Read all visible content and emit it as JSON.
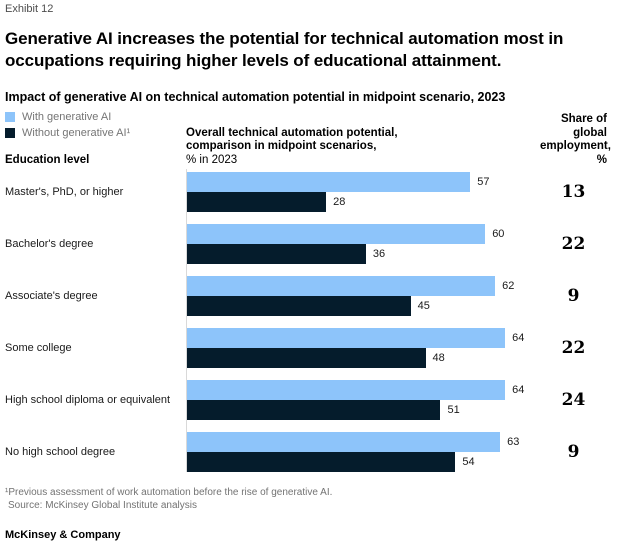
{
  "exhibit_label": "Exhibit 12",
  "title_lines": [
    "Generative AI increases the potential for technical automation most in",
    "occupations requiring higher levels of educational attainment."
  ],
  "subtitle": "Impact of generative AI on technical automation potential in midpoint scenario, 2023",
  "legend": {
    "items": [
      {
        "label": "With generative AI"
      },
      {
        "label": "Without generative AI¹"
      }
    ]
  },
  "columns": {
    "education_level": "Education level",
    "bars_header_lines": [
      "Overall technical automation potential,",
      "comparison in midpoint scenarios,",
      "% in 2023"
    ],
    "share_header_lines": [
      "Share of global",
      "employment, %"
    ]
  },
  "colors": {
    "with_generative_ai": "#8dc4fa",
    "without_generative_ai": "#051c2c",
    "axis_line": "#d9d9d9"
  },
  "chart_data": {
    "type": "bar",
    "orientation": "horizontal",
    "title": "Impact of generative AI on technical automation potential in midpoint scenario, 2023",
    "xlabel": "Overall technical automation potential, comparison in midpoint scenarios, % in 2023",
    "xlim": [
      0,
      64
    ],
    "grid": false,
    "legend_position": "top-left",
    "categories": [
      "Master's, PhD, or higher",
      "Bachelor's degree",
      "Associate's degree",
      "Some college",
      "High school diploma or equivalent",
      "No high school degree"
    ],
    "series": [
      {
        "name": "With generative AI",
        "values": [
          57,
          60,
          62,
          64,
          64,
          63
        ]
      },
      {
        "name": "Without generative AI",
        "values": [
          28,
          36,
          45,
          48,
          51,
          54
        ]
      }
    ],
    "share_of_global_employment": {
      "label": "Share of global employment, %",
      "values": [
        13,
        22,
        9,
        22,
        24,
        9
      ]
    }
  },
  "footnotes": {
    "line1": "¹Previous assessment of work automation before the rise of generative AI.",
    "line2": "Source: McKinsey Global Institute analysis"
  },
  "footer": "McKinsey & Company"
}
